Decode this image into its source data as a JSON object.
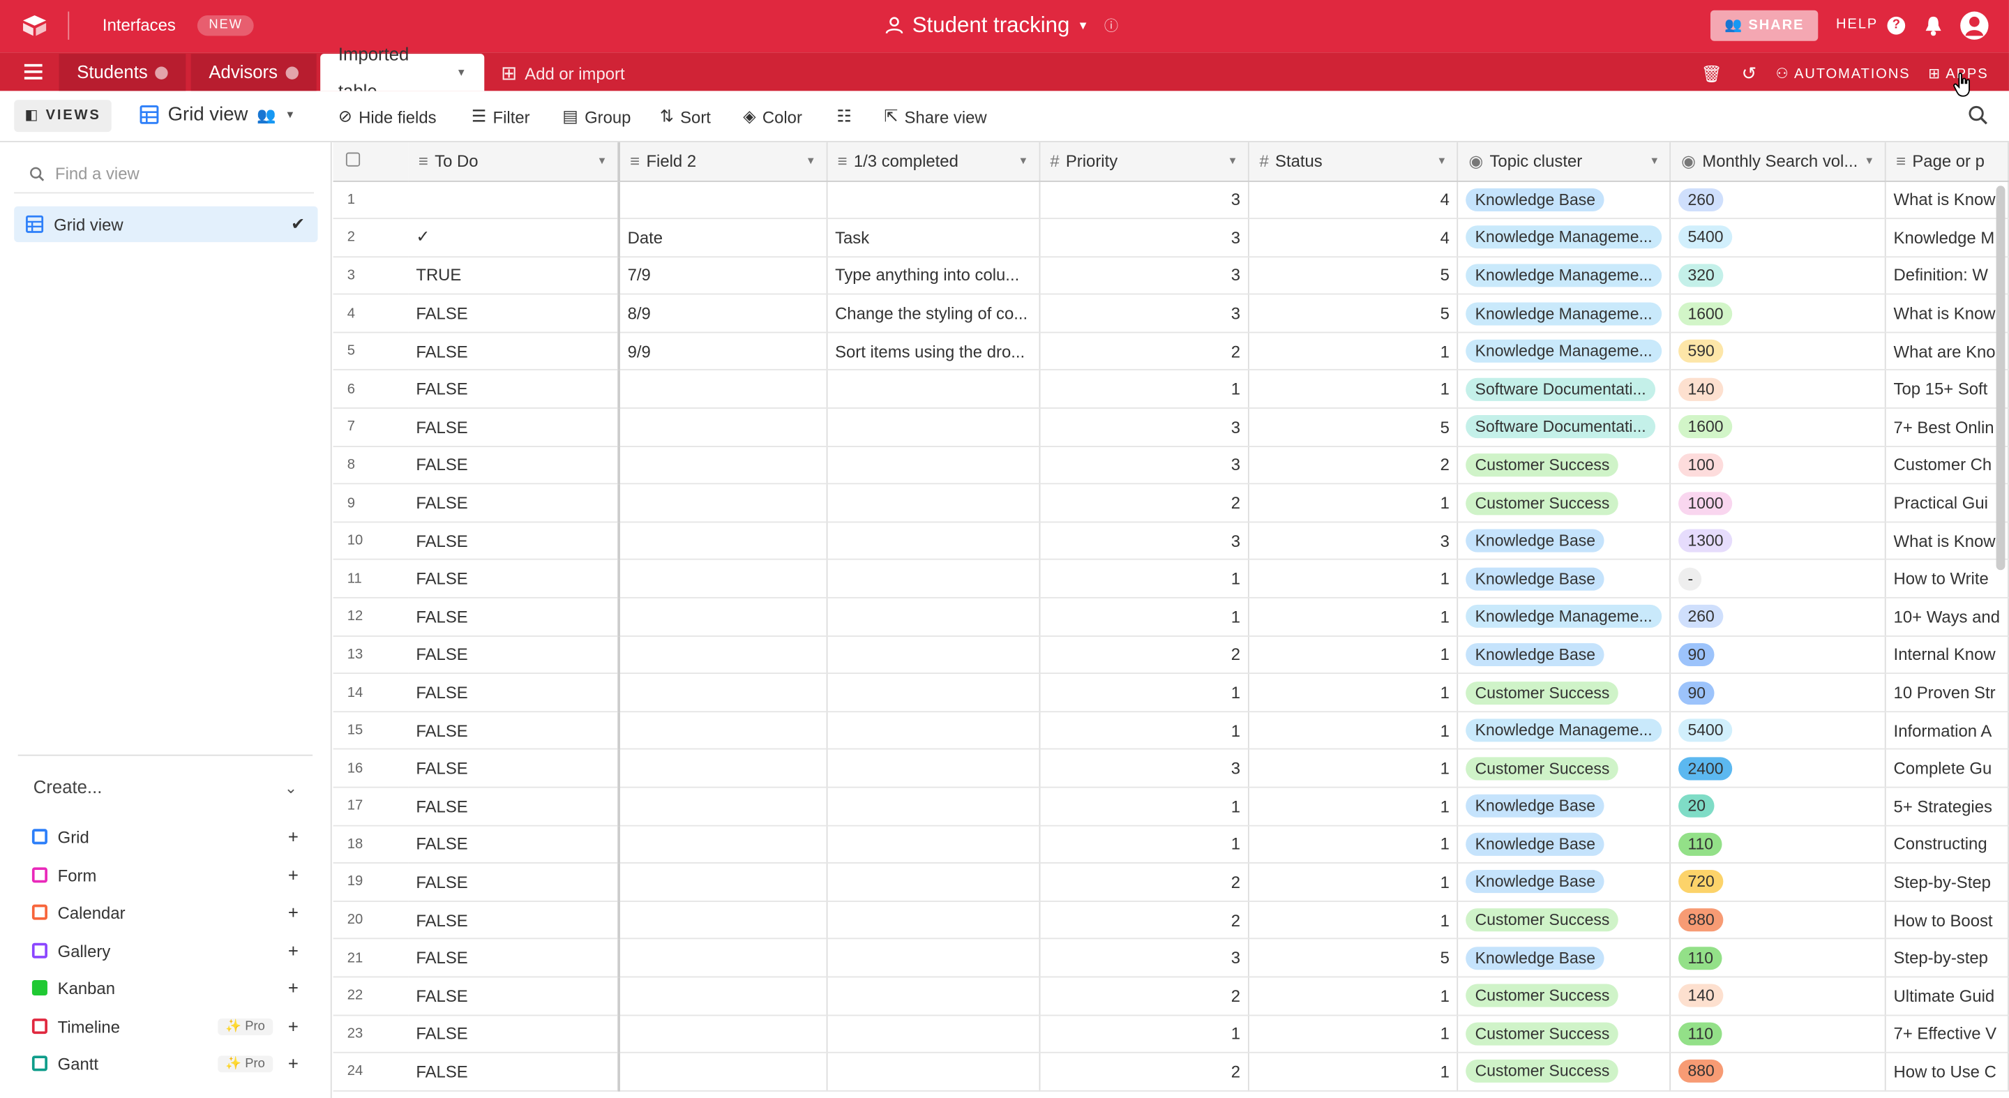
{
  "topbar": {
    "interfaces": "Interfaces",
    "new_badge": "NEW",
    "base_title": "Student tracking",
    "share": "SHARE",
    "help": "HELP"
  },
  "tabs": {
    "students": "Students",
    "advisors": "Advisors",
    "imported": "Imported table",
    "add_import": "Add or import",
    "automations": "AUTOMATIONS",
    "apps": "APPS"
  },
  "viewbar": {
    "views": "VIEWS",
    "view_name": "Grid view",
    "hide_fields": "Hide fields",
    "filter": "Filter",
    "group": "Group",
    "sort": "Sort",
    "color": "Color",
    "share_view": "Share view"
  },
  "sidebar": {
    "find_placeholder": "Find a view",
    "active_view": "Grid view",
    "create": "Create...",
    "pro_label": "Pro",
    "create_items": [
      {
        "label": "Grid",
        "color": "#2d7ff9"
      },
      {
        "label": "Form",
        "color": "#e929ba"
      },
      {
        "label": "Calendar",
        "color": "#f7653b"
      },
      {
        "label": "Gallery",
        "color": "#8b46ff"
      },
      {
        "label": "Kanban",
        "color": "#20c933"
      },
      {
        "label": "Timeline",
        "color": "#e0283f"
      },
      {
        "label": "Gantt",
        "color": "#0f9d8a"
      }
    ]
  },
  "columns": [
    "To Do",
    "Field 2",
    "1/3 completed",
    "Priority",
    "Status",
    "Topic cluster",
    "Monthly Search vol...",
    "Page or p"
  ],
  "colors": {
    "kb": "#c5e3fc",
    "km": "#c9e9fb",
    "sd": "#c4f0e9",
    "cs": "#cff3c8"
  },
  "rows": [
    {
      "n": "1",
      "todo": "",
      "f2": "",
      "c3": "",
      "pri": "3",
      "st": "4",
      "topic": "Knowledge Base",
      "tc": "#c5e3fc",
      "vol": "260",
      "vc": "#cfdffc",
      "page": "What is Know"
    },
    {
      "n": "2",
      "todo": "✓",
      "f2": "Date",
      "c3": "Task",
      "pri": "3",
      "st": "4",
      "topic": "Knowledge Manageme...",
      "tc": "#c9e9fb",
      "vol": "5400",
      "vc": "#d1effc",
      "page": "Knowledge M"
    },
    {
      "n": "3",
      "todo": "TRUE",
      "f2": "7/9",
      "c3": "Type anything into colu...",
      "pri": "3",
      "st": "5",
      "topic": "Knowledge Manageme...",
      "tc": "#c9e9fb",
      "vol": "320",
      "vc": "#c4f0e9",
      "page": "Definition: W"
    },
    {
      "n": "4",
      "todo": "FALSE",
      "f2": "8/9",
      "c3": "Change the styling of co...",
      "pri": "3",
      "st": "5",
      "topic": "Knowledge Manageme...",
      "tc": "#c9e9fb",
      "vol": "1600",
      "vc": "#d2f5c8",
      "page": "What is Know"
    },
    {
      "n": "5",
      "todo": "FALSE",
      "f2": "9/9",
      "c3": "Sort items using the dro...",
      "pri": "2",
      "st": "1",
      "topic": "Knowledge Manageme...",
      "tc": "#c9e9fb",
      "vol": "590",
      "vc": "#fde6a8",
      "page": "What are Kno"
    },
    {
      "n": "6",
      "todo": "FALSE",
      "f2": "",
      "c3": "",
      "pri": "1",
      "st": "1",
      "topic": "Software Documentati...",
      "tc": "#c4f0e9",
      "vol": "140",
      "vc": "#fde0cf",
      "page": "Top 15+ Soft"
    },
    {
      "n": "7",
      "todo": "FALSE",
      "f2": "",
      "c3": "",
      "pri": "3",
      "st": "5",
      "topic": "Software Documentati...",
      "tc": "#c4f0e9",
      "vol": "1600",
      "vc": "#d2f5c8",
      "page": "7+ Best Onlin"
    },
    {
      "n": "8",
      "todo": "FALSE",
      "f2": "",
      "c3": "",
      "pri": "3",
      "st": "2",
      "topic": "Customer Success",
      "tc": "#cff3c8",
      "vol": "100",
      "vc": "#fddcdc",
      "page": "Customer Ch"
    },
    {
      "n": "9",
      "todo": "FALSE",
      "f2": "",
      "c3": "",
      "pri": "2",
      "st": "1",
      "topic": "Customer Success",
      "tc": "#cff3c8",
      "vol": "1000",
      "vc": "#f9d6ef",
      "page": "Practical Gui"
    },
    {
      "n": "10",
      "todo": "FALSE",
      "f2": "",
      "c3": "",
      "pri": "3",
      "st": "3",
      "topic": "Knowledge Base",
      "tc": "#c5e3fc",
      "vol": "1300",
      "vc": "#e6dcfc",
      "page": "What is Know"
    },
    {
      "n": "11",
      "todo": "FALSE",
      "f2": "",
      "c3": "",
      "pri": "1",
      "st": "1",
      "topic": "Knowledge Base",
      "tc": "#c5e3fc",
      "vol": "-",
      "vc": "#eeeeee",
      "page": "How to Write"
    },
    {
      "n": "12",
      "todo": "FALSE",
      "f2": "",
      "c3": "",
      "pri": "1",
      "st": "1",
      "topic": "Knowledge Manageme...",
      "tc": "#c9e9fb",
      "vol": "260",
      "vc": "#cfdffc",
      "page": "10+ Ways and"
    },
    {
      "n": "13",
      "todo": "FALSE",
      "f2": "",
      "c3": "",
      "pri": "2",
      "st": "1",
      "topic": "Knowledge Base",
      "tc": "#c5e3fc",
      "vol": "90",
      "vc": "#9cc3fb",
      "page": "Internal Know"
    },
    {
      "n": "14",
      "todo": "FALSE",
      "f2": "",
      "c3": "",
      "pri": "1",
      "st": "1",
      "topic": "Customer Success",
      "tc": "#cff3c8",
      "vol": "90",
      "vc": "#9cc3fb",
      "page": "10 Proven Str"
    },
    {
      "n": "15",
      "todo": "FALSE",
      "f2": "",
      "c3": "",
      "pri": "1",
      "st": "1",
      "topic": "Knowledge Manageme...",
      "tc": "#c9e9fb",
      "vol": "5400",
      "vc": "#d1effc",
      "page": "Information A"
    },
    {
      "n": "16",
      "todo": "FALSE",
      "f2": "",
      "c3": "",
      "pri": "3",
      "st": "1",
      "topic": "Customer Success",
      "tc": "#cff3c8",
      "vol": "2400",
      "vc": "#5cb8f0",
      "page": "Complete Gu"
    },
    {
      "n": "17",
      "todo": "FALSE",
      "f2": "",
      "c3": "",
      "pri": "1",
      "st": "1",
      "topic": "Knowledge Base",
      "tc": "#c5e3fc",
      "vol": "20",
      "vc": "#7fdcc6",
      "page": "5+ Strategies"
    },
    {
      "n": "18",
      "todo": "FALSE",
      "f2": "",
      "c3": "",
      "pri": "1",
      "st": "1",
      "topic": "Knowledge Base",
      "tc": "#c5e3fc",
      "vol": "110",
      "vc": "#93e088",
      "page": "Constructing"
    },
    {
      "n": "19",
      "todo": "FALSE",
      "f2": "",
      "c3": "",
      "pri": "2",
      "st": "1",
      "topic": "Knowledge Base",
      "tc": "#c5e3fc",
      "vol": "720",
      "vc": "#fcd36a",
      "page": "Step-by-Step"
    },
    {
      "n": "20",
      "todo": "FALSE",
      "f2": "",
      "c3": "",
      "pri": "2",
      "st": "1",
      "topic": "Customer Success",
      "tc": "#cff3c8",
      "vol": "880",
      "vc": "#f79b74",
      "page": "How to Boost"
    },
    {
      "n": "21",
      "todo": "FALSE",
      "f2": "",
      "c3": "",
      "pri": "3",
      "st": "5",
      "topic": "Knowledge Base",
      "tc": "#c5e3fc",
      "vol": "110",
      "vc": "#93e088",
      "page": "Step-by-step"
    },
    {
      "n": "22",
      "todo": "FALSE",
      "f2": "",
      "c3": "",
      "pri": "2",
      "st": "1",
      "topic": "Customer Success",
      "tc": "#cff3c8",
      "vol": "140",
      "vc": "#fde0cf",
      "page": "Ultimate Guid"
    },
    {
      "n": "23",
      "todo": "FALSE",
      "f2": "",
      "c3": "",
      "pri": "1",
      "st": "1",
      "topic": "Customer Success",
      "tc": "#cff3c8",
      "vol": "110",
      "vc": "#93e088",
      "page": "7+ Effective V"
    },
    {
      "n": "24",
      "todo": "FALSE",
      "f2": "",
      "c3": "",
      "pri": "2",
      "st": "1",
      "topic": "Customer Success",
      "tc": "#cff3c8",
      "vol": "880",
      "vc": "#f79b74",
      "page": "How to Use C"
    }
  ]
}
